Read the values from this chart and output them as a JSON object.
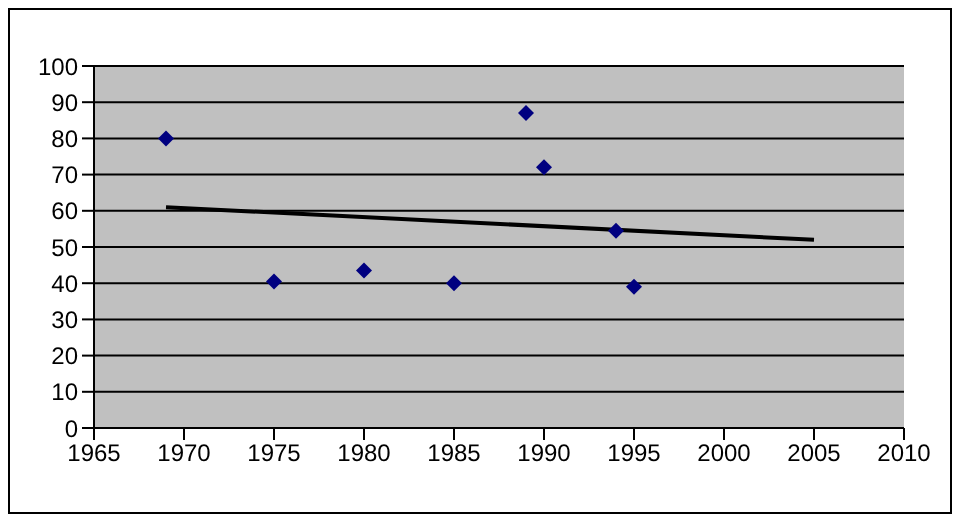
{
  "chart_data": {
    "type": "scatter",
    "grid": "y",
    "legend": false,
    "xlim": [
      1965,
      2010
    ],
    "xticks": [
      1965,
      1970,
      1975,
      1980,
      1985,
      1990,
      1995,
      2000,
      2005,
      2010
    ],
    "ylim": [
      0,
      100
    ],
    "yticks": [
      0,
      10,
      20,
      30,
      40,
      50,
      60,
      70,
      80,
      90,
      100
    ],
    "series": [
      {
        "marker": "diamond",
        "color": "#000080",
        "x": [
          1969,
          1975,
          1980,
          1985,
          1989,
          1990,
          1994,
          1995
        ],
        "values": [
          80,
          40.5,
          43.5,
          40,
          87,
          72,
          54.5,
          39
        ]
      },
      {
        "type": "line",
        "marker": "none",
        "color": "#000000",
        "x": [
          1969,
          2005
        ],
        "values": [
          61,
          52
        ]
      }
    ]
  }
}
